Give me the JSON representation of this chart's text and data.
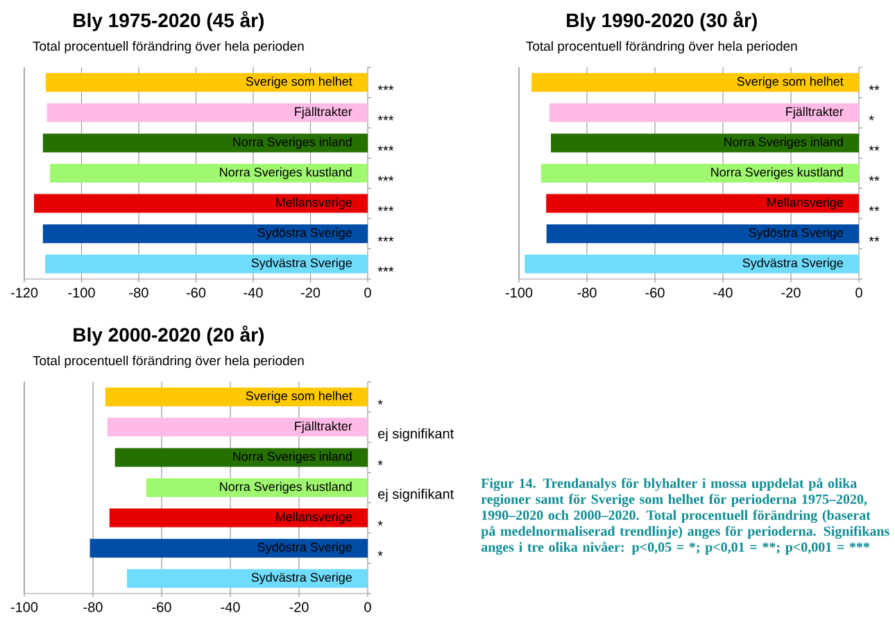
{
  "chart_data": [
    {
      "type": "bar",
      "orientation": "horizontal",
      "title": "Bly 1975-2020 (45 år)",
      "subtitle": "Total procentuell förändring över hela perioden",
      "categories": [
        "Sverige som helhet",
        "Fjälltrakter",
        "Norra Sveriges inland",
        "Norra Sveriges kustland",
        "Mellansverige",
        "Sydöstra Sverige",
        "Sydvästra Sverige"
      ],
      "values": [
        -112.5,
        -112.1,
        -113.5,
        -111.0,
        -116.6,
        -113.5,
        -112.7
      ],
      "colors": [
        "#ffc800",
        "#ffbbe6",
        "#267000",
        "#a0f870",
        "#e60000",
        "#004da6",
        "#70dcfc"
      ],
      "xlim": [
        -120,
        0
      ],
      "xticks": [
        -120,
        -100,
        -80,
        -60,
        -40,
        -20,
        0
      ],
      "grid": "x",
      "annotations": [
        "***",
        "***",
        "***",
        "***",
        "***",
        "***",
        "***"
      ]
    },
    {
      "type": "bar",
      "orientation": "horizontal",
      "title": "Bly 1990-2020 (30 år)",
      "subtitle": "Total procentuell förändring över hela perioden",
      "categories": [
        "Sverige som helhet",
        "Fjälltrakter",
        "Norra Sveriges inland",
        "Norra Sveriges kustland",
        "Mellansverige",
        "Sydöstra Sverige",
        "Sydvästra Sverige"
      ],
      "values": [
        -96.3,
        -91.1,
        -90.6,
        -93.5,
        -92.0,
        -91.9,
        -98.3
      ],
      "colors": [
        "#ffc800",
        "#ffbbe6",
        "#267000",
        "#a0f870",
        "#e60000",
        "#004da6",
        "#70dcfc"
      ],
      "xlim": [
        -100,
        0
      ],
      "xticks": [
        -100,
        -80,
        -60,
        -40,
        -20,
        0
      ],
      "grid": "x",
      "annotations": [
        "**",
        "*",
        "**",
        "**",
        "**",
        "**"
      ]
    },
    {
      "type": "bar",
      "orientation": "horizontal",
      "title": "Bly 2000-2020 (20 år)",
      "subtitle": "Total procentuell förändring över hela perioden",
      "categories": [
        "Sverige som helhet",
        "Fjälltrakter",
        "Norra Sveriges inland",
        "Norra Sveriges kustland",
        "Mellansverige",
        "Sydöstra Sverige",
        "Sydvästra Sverige"
      ],
      "values": [
        -76.4,
        -75.8,
        -73.6,
        -64.5,
        -75.2,
        -80.9,
        -70.1
      ],
      "colors": [
        "#ffc800",
        "#ffbbe6",
        "#267000",
        "#a0f870",
        "#e60000",
        "#004da6",
        "#70dcfc"
      ],
      "xlim": [
        -100,
        0
      ],
      "xticks": [
        -100,
        -80,
        -60,
        -40,
        -20,
        0
      ],
      "grid": "x",
      "annotations": [
        "*",
        "ej signifikant",
        "*",
        "ej signifikant",
        "*",
        "*"
      ]
    },
    {
      "type": "other",
      "annotations": [
        "Figur 14. Trendanalys för blyhalter i mossa uppdelat på olika regioner samt för Sverige som helhet för perioderna 1975–2020, 1990–2020 och 2000–2020. Total procentuell förändring (baserat på medelnormaliserad trendlinje) anges för perioderna. Signifikans anges i tre olika nivåer:",
        "p<0,05 = *;",
        "p<0,01 = **;",
        "p<0,001 = ***"
      ]
    }
  ]
}
